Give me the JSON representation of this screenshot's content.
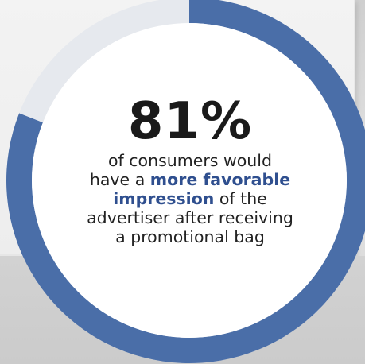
{
  "colors": {
    "filled": "#4a6ea8",
    "remaining": "#e6e9ee",
    "center": "#ffffff",
    "highlight_text": "#2f4f8f"
  },
  "chart_data": {
    "type": "pie",
    "variant": "donut",
    "values": [
      81,
      19
    ],
    "value_label": "81%",
    "unit": "%"
  },
  "caption": {
    "lines": [
      {
        "parts": [
          {
            "text": "of consumers would",
            "bold": false
          }
        ]
      },
      {
        "parts": [
          {
            "text": "have a ",
            "bold": false
          },
          {
            "text": "more favorable",
            "bold": true
          }
        ]
      },
      {
        "parts": [
          {
            "text": "impression",
            "bold": true
          },
          {
            "text": " of the",
            "bold": false
          }
        ]
      },
      {
        "parts": [
          {
            "text": "advertiser after receiving",
            "bold": false
          }
        ]
      },
      {
        "parts": [
          {
            "text": "a promotional bag",
            "bold": false
          }
        ]
      }
    ]
  }
}
